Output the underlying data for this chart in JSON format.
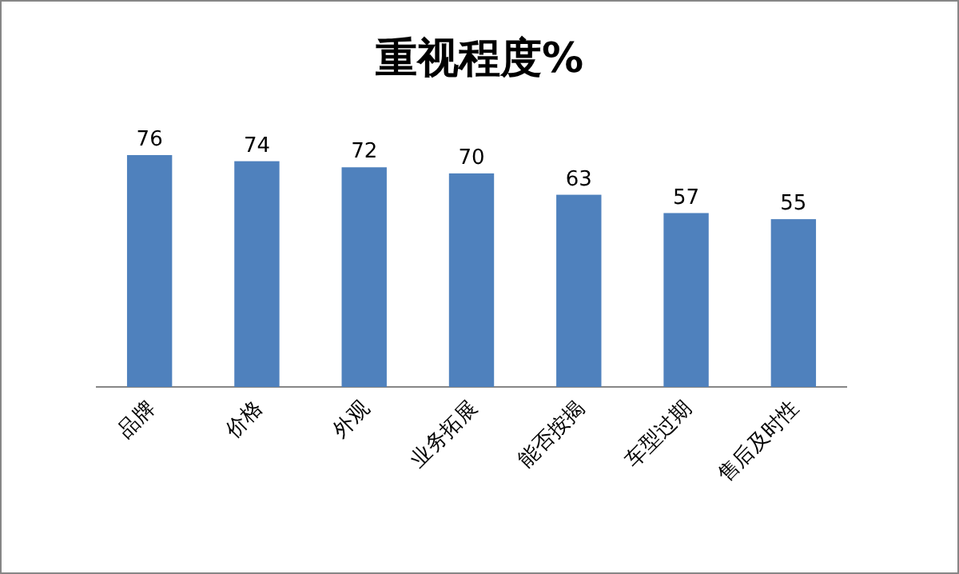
{
  "chart_data": {
    "type": "bar",
    "title": "重视程度%",
    "categories": [
      "品牌",
      "价格",
      "外观",
      "业务拓展",
      "能否按揭",
      "车型过期",
      "售后及时性"
    ],
    "values": [
      76,
      74,
      72,
      70,
      63,
      57,
      55
    ],
    "color": "#4f81bd",
    "data_labels": true
  }
}
